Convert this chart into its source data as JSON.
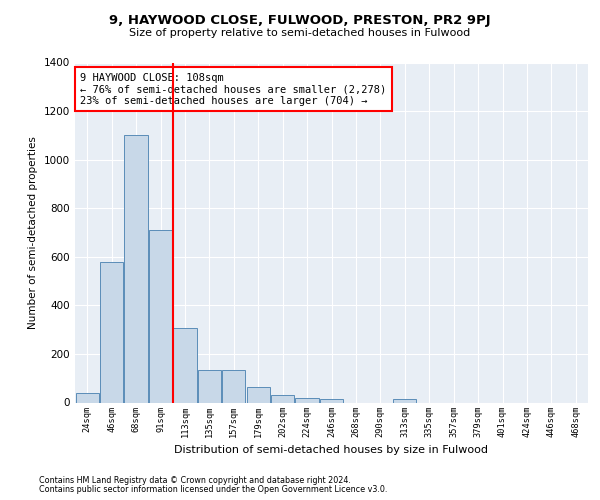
{
  "title": "9, HAYWOOD CLOSE, FULWOOD, PRESTON, PR2 9PJ",
  "subtitle": "Size of property relative to semi-detached houses in Fulwood",
  "xlabel": "Distribution of semi-detached houses by size in Fulwood",
  "ylabel": "Number of semi-detached properties",
  "bins": [
    "24sqm",
    "46sqm",
    "68sqm",
    "91sqm",
    "113sqm",
    "135sqm",
    "157sqm",
    "179sqm",
    "202sqm",
    "224sqm",
    "246sqm",
    "268sqm",
    "290sqm",
    "313sqm",
    "335sqm",
    "357sqm",
    "379sqm",
    "401sqm",
    "424sqm",
    "446sqm",
    "468sqm"
  ],
  "values": [
    40,
    580,
    1100,
    710,
    305,
    135,
    135,
    65,
    30,
    20,
    15,
    0,
    0,
    15,
    0,
    0,
    0,
    0,
    0,
    0,
    0
  ],
  "bar_color": "#c8d8e8",
  "bar_edge_color": "#5b8db8",
  "property_sqm": 108,
  "annotation_text": "9 HAYWOOD CLOSE: 108sqm\n← 76% of semi-detached houses are smaller (2,278)\n23% of semi-detached houses are larger (704) →",
  "annotation_box_color": "white",
  "annotation_box_edge_color": "red",
  "vline_color": "red",
  "ylim": [
    0,
    1400
  ],
  "yticks": [
    0,
    200,
    400,
    600,
    800,
    1000,
    1200,
    1400
  ],
  "background_color": "#e8eef5",
  "footer_line1": "Contains HM Land Registry data © Crown copyright and database right 2024.",
  "footer_line2": "Contains public sector information licensed under the Open Government Licence v3.0."
}
